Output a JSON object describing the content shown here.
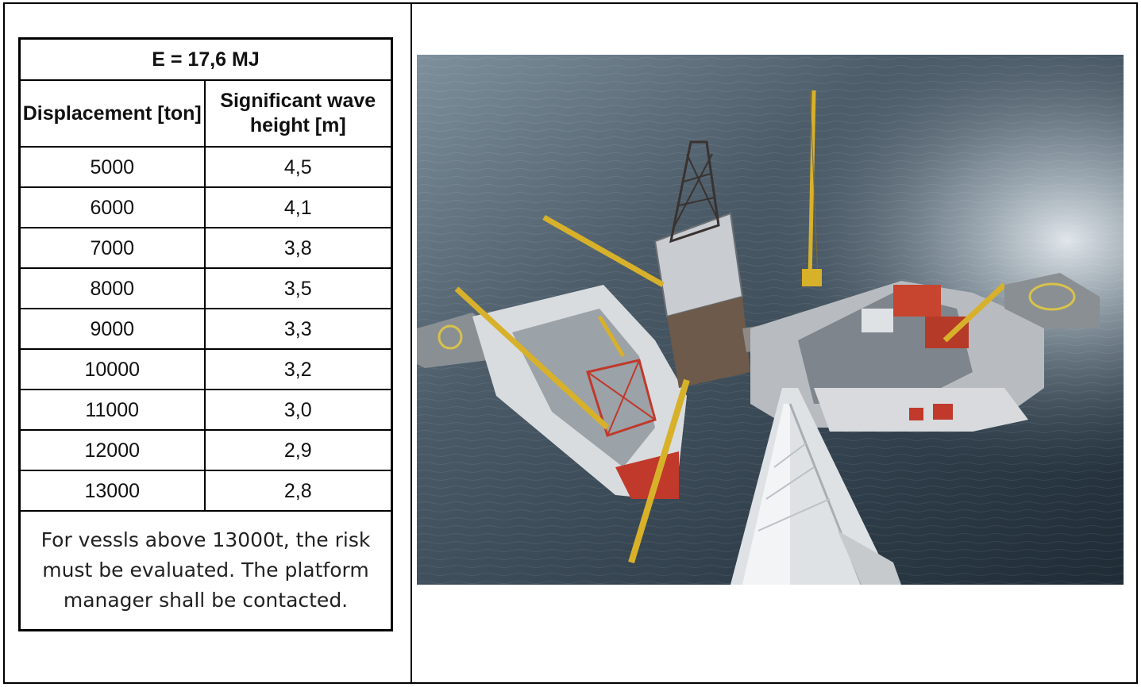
{
  "table": {
    "title": "E = 17,6 MJ",
    "headers": [
      "Displacement [ton]",
      "Significant wave height [m]"
    ],
    "rows": [
      {
        "displacement": "5000",
        "wave_height": "4,5"
      },
      {
        "displacement": "6000",
        "wave_height": "4,1"
      },
      {
        "displacement": "7000",
        "wave_height": "3,8"
      },
      {
        "displacement": "8000",
        "wave_height": "3,5"
      },
      {
        "displacement": "9000",
        "wave_height": "3,3"
      },
      {
        "displacement": "10000",
        "wave_height": "3,2"
      },
      {
        "displacement": "11000",
        "wave_height": "3,0"
      },
      {
        "displacement": "12000",
        "wave_height": "2,9"
      },
      {
        "displacement": "13000",
        "wave_height": "2,8"
      }
    ],
    "note": "For vessls above 13000t, the risk must be evaluated. The platform manager shall be contacted."
  },
  "photo": {
    "colors": {
      "sea_dark": "#2e3d4a",
      "sea_light": "#9fb0bd",
      "crane_yellow": "#d8b12a",
      "deck_red": "#c0392b",
      "structure_grey": "#c9ccd0",
      "helideck": "#8a8f93"
    }
  }
}
